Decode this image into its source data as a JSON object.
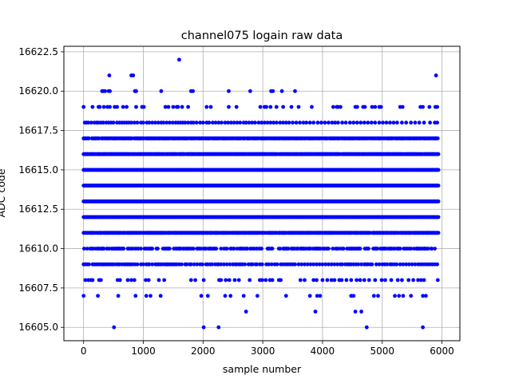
{
  "chart_data": {
    "type": "scatter",
    "title": "channel075 logain raw data",
    "xlabel": "sample number",
    "ylabel": "ADC code",
    "xlim": [
      -330,
      6300
    ],
    "ylim": [
      16604.15,
      16622.85
    ],
    "xticks": [
      0,
      1000,
      2000,
      3000,
      4000,
      5000,
      6000
    ],
    "xtick_labels": [
      "0",
      "1000",
      "2000",
      "3000",
      "4000",
      "5000",
      "6000"
    ],
    "yticks": [
      16605.0,
      16607.5,
      16610.0,
      16612.5,
      16615.0,
      16617.5,
      16620.0,
      16622.5
    ],
    "ytick_labels": [
      "16605.0",
      "16607.5",
      "16610.0",
      "16612.5",
      "16615.0",
      "16617.5",
      "16620.0",
      "16622.5"
    ],
    "grid": true,
    "marker_color": "#0000ff",
    "x_range": [
      0,
      5940
    ],
    "dense_levels": [
      {
        "y": 16610,
        "density": 0.45
      },
      {
        "y": 16611,
        "density": 0.85
      },
      {
        "y": 16612,
        "density": 1.0
      },
      {
        "y": 16613,
        "density": 1.0
      },
      {
        "y": 16614,
        "density": 1.0
      },
      {
        "y": 16615,
        "density": 1.0
      },
      {
        "y": 16616,
        "density": 0.92
      },
      {
        "y": 16617,
        "density": 0.8
      }
    ],
    "sparse_points": [
      {
        "y": 16609,
        "x": [
          0,
          30,
          60,
          90,
          150,
          180,
          210,
          240,
          270,
          300,
          320,
          340,
          360,
          390,
          420,
          450,
          480,
          510,
          550,
          580,
          600,
          640,
          680,
          700,
          730,
          760,
          790,
          820,
          860,
          900,
          960,
          1000,
          1050,
          1080,
          1100,
          1150,
          1200,
          1230,
          1250,
          1280,
          1310,
          1350,
          1380,
          1400,
          1420,
          1450,
          1480,
          1500,
          1530,
          1560,
          1600,
          1640,
          1700,
          1730,
          1780,
          1800,
          1850,
          1900,
          1950,
          1990,
          2050,
          2080,
          2120,
          2150,
          2200,
          2240,
          2260,
          2300,
          2350,
          2400,
          2450,
          2500,
          2540,
          2560,
          2600,
          2630,
          2660,
          2700,
          2760,
          2800,
          2830,
          2880,
          2900,
          2950,
          2990,
          3060,
          3100,
          3150,
          3200,
          3240,
          3300,
          3340,
          3380,
          3420,
          3460,
          3500,
          3540,
          3600,
          3650,
          3700,
          3750,
          3800,
          3850,
          3900,
          3950,
          4000,
          4050,
          4100,
          4150,
          4200,
          4250,
          4300,
          4330,
          4380,
          4420,
          4450,
          4480,
          4520,
          4560,
          4600,
          4650,
          4700,
          4730,
          4760,
          4800,
          4830,
          4900,
          4950,
          5000,
          5040,
          5080,
          5130,
          5160,
          5200,
          5240,
          5300,
          5350,
          5400,
          5450,
          5500,
          5550,
          5600,
          5640,
          5680,
          5720,
          5760,
          5800,
          5840,
          5880,
          5920
        ]
      },
      {
        "y": 16618,
        "x": [
          20,
          50,
          80,
          130,
          180,
          220,
          250,
          290,
          330,
          380,
          420,
          460,
          500,
          560,
          600,
          640,
          680,
          720,
          760,
          800,
          850,
          900,
          960,
          1000,
          1060,
          1100,
          1150,
          1200,
          1250,
          1300,
          1340,
          1390,
          1440,
          1490,
          1540,
          1580,
          1620,
          1660,
          1700,
          1750,
          1800,
          1840,
          1890,
          1950,
          2000,
          2060,
          2100,
          2160,
          2210,
          2260,
          2310,
          2370,
          2420,
          2470,
          2520,
          2570,
          2620,
          2680,
          2720,
          2770,
          2820,
          2870,
          2930,
          2980,
          3030,
          3080,
          3130,
          3180,
          3230,
          3290,
          3340,
          3390,
          3440,
          3500,
          3560,
          3620,
          3680,
          3730,
          3790,
          3850,
          3920,
          3980,
          4040,
          4100,
          4160,
          4210,
          4260,
          4330,
          4390,
          4460,
          4520,
          4580,
          4640,
          4700,
          4760,
          4820,
          4880,
          4950,
          5010,
          5070,
          5130,
          5190,
          5250,
          5330,
          5400,
          5480,
          5550,
          5620,
          5700,
          5800,
          5880,
          5920
        ]
      },
      {
        "y": 16608,
        "x": [
          30,
          80,
          120,
          150,
          260,
          290,
          570,
          610,
          740,
          800,
          850,
          1040,
          1090,
          1260,
          1350,
          1800,
          1870,
          2010,
          2270,
          2300,
          2380,
          2440,
          2530,
          2600,
          2780,
          2950,
          2990,
          3050,
          3120,
          3160,
          3270,
          3300,
          3630,
          3700,
          3850,
          3900,
          4000,
          4080,
          4150,
          4200,
          4280,
          4320,
          4400,
          4480,
          4570,
          4630,
          4700,
          4780,
          4880,
          4990,
          5050,
          5150,
          5260,
          5330,
          5440,
          5520,
          5600,
          5650,
          5700,
          5930
        ]
      },
      {
        "y": 16619,
        "x": [
          0,
          150,
          250,
          270,
          340,
          400,
          440,
          520,
          560,
          660,
          720,
          880,
          980,
          1010,
          1370,
          1420,
          1500,
          1560,
          1580,
          1650,
          1750,
          2060,
          2130,
          2430,
          2560,
          2960,
          3030,
          3060,
          3130,
          3230,
          3340,
          3480,
          3600,
          3820,
          4180,
          4240,
          4260,
          4300,
          4550,
          4580,
          4680,
          4710,
          4830,
          4880,
          4950,
          4980,
          5300,
          5340,
          5640,
          5680,
          5790,
          5890,
          5920
        ]
      },
      {
        "y": 16607,
        "x": [
          0,
          240,
          580,
          870,
          1050,
          1120,
          1290,
          1970,
          2080,
          2370,
          2460,
          2680,
          2910,
          3390,
          3790,
          3910,
          3960,
          4480,
          4520,
          4860,
          4930,
          5210,
          5280,
          5350,
          5480,
          5680,
          5730
        ]
      },
      {
        "y": 16620,
        "x": [
          310,
          330,
          360,
          420,
          440,
          860,
          880,
          1300,
          1800,
          1830,
          2430,
          2790,
          3140,
          3170,
          3320,
          3540
        ]
      },
      {
        "y": 16606,
        "x": [
          2720,
          3880,
          4550,
          4650
        ]
      },
      {
        "y": 16605,
        "x": [
          510,
          2010,
          2260,
          4740,
          5680
        ]
      },
      {
        "y": 16621,
        "x": [
          430,
          800,
          830,
          5900
        ]
      },
      {
        "y": 16622,
        "x": [
          1600
        ]
      }
    ]
  }
}
